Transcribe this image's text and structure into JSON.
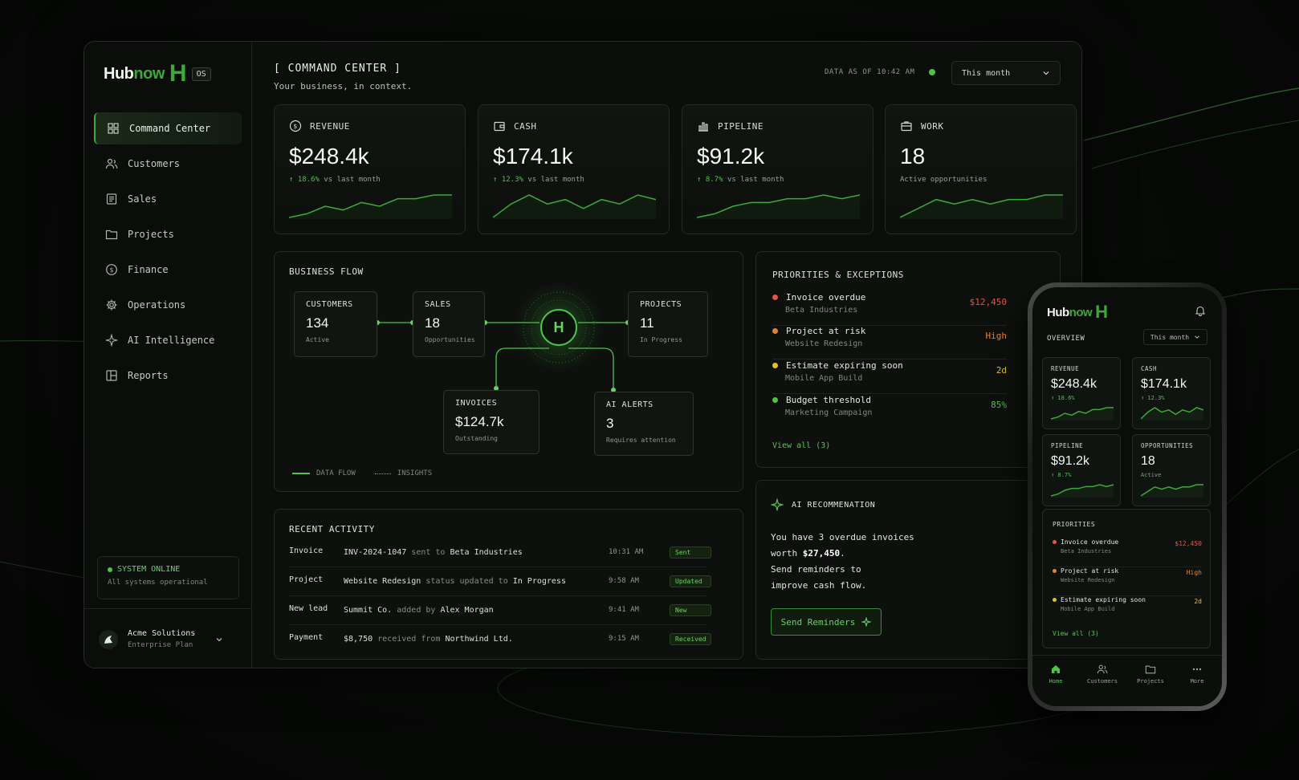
{
  "app": {
    "brand_hub": "Hub",
    "brand_now": "now",
    "brand_mark": "H",
    "os_badge": "OS",
    "accent": "#3fa83a"
  },
  "sidebar": {
    "items": [
      {
        "label": "Command Center",
        "icon": "grid-icon",
        "active": true
      },
      {
        "label": "Customers",
        "icon": "users-icon"
      },
      {
        "label": "Sales",
        "icon": "document-icon"
      },
      {
        "label": "Projects",
        "icon": "folder-icon"
      },
      {
        "label": "Finance",
        "icon": "dollar-circle-icon"
      },
      {
        "label": "Operations",
        "icon": "gear-icon"
      },
      {
        "label": "AI Intelligence",
        "icon": "sparkle-icon"
      },
      {
        "label": "Reports",
        "icon": "report-icon"
      }
    ],
    "system_status": "SYSTEM ONLINE",
    "system_sub": "All systems operational",
    "account_name": "Acme Solutions",
    "account_plan": "Enterprise Plan"
  },
  "header": {
    "title": "[ COMMAND CENTER ]",
    "subtitle": "Your business, in context.",
    "data_as_of": "DATA AS OF 10:42 AM",
    "period": "This month"
  },
  "kpis": [
    {
      "label": "REVENUE",
      "icon": "dollar-circle-icon",
      "value": "$248.4k",
      "delta": "↑ 18.6%",
      "delta_suffix": "vs last month",
      "spark": [
        3,
        4,
        6,
        5,
        7,
        6,
        8,
        8,
        9,
        9
      ]
    },
    {
      "label": "CASH",
      "icon": "wallet-icon",
      "value": "$174.1k",
      "delta": "↑ 12.3%",
      "delta_suffix": "vs last month",
      "spark": [
        3,
        6,
        8,
        6,
        7,
        5,
        7,
        6,
        8,
        7
      ]
    },
    {
      "label": "PIPELINE",
      "icon": "bar-chart-icon",
      "value": "$91.2k",
      "delta": "↑ 8.7%",
      "delta_suffix": "vs last month",
      "spark": [
        3,
        4,
        6,
        7,
        7,
        8,
        8,
        9,
        8,
        9
      ]
    },
    {
      "label": "WORK",
      "icon": "briefcase-icon",
      "value": "18",
      "delta": "",
      "delta_suffix": "Active opportunities",
      "spark": [
        3,
        5,
        7,
        6,
        7,
        6,
        7,
        7,
        8,
        8
      ]
    }
  ],
  "business_flow": {
    "title": "BUSINESS FLOW",
    "hub_label": "H",
    "nodes": {
      "customers": {
        "label": "CUSTOMERS",
        "value": "134",
        "sub": "Active"
      },
      "sales": {
        "label": "SALES",
        "value": "18",
        "sub": "Opportunities"
      },
      "projects": {
        "label": "PROJECTS",
        "value": "11",
        "sub": "In Progress"
      },
      "invoices": {
        "label": "INVOICES",
        "value": "$124.7k",
        "sub": "Outstanding"
      },
      "alerts": {
        "label": "AI ALERTS",
        "value": "3",
        "sub": "Requires attention"
      }
    },
    "legend_flow": "DATA FLOW",
    "legend_insights": "INSIGHTS"
  },
  "priorities": {
    "title": "PRIORITIES & EXCEPTIONS",
    "items": [
      {
        "title": "Invoice overdue",
        "sub": "Beta Industries",
        "value": "$12,450",
        "color": "#e5534b"
      },
      {
        "title": "Project at risk",
        "sub": "Website Redesign",
        "value": "High",
        "color": "#e8812f"
      },
      {
        "title": "Estimate expiring soon",
        "sub": "Mobile App Build",
        "value": "2d",
        "color": "#e3c12e"
      },
      {
        "title": "Budget threshold",
        "sub": "Marketing Campaign",
        "value": "85%",
        "color": "#4fc24a"
      }
    ],
    "view_all": "View all (3)"
  },
  "activity": {
    "title": "RECENT ACTIVITY",
    "rows": [
      {
        "type": "Invoice",
        "subject": "INV-2024-1047",
        "middle": "sent to",
        "object": "Beta Industries",
        "time": "10:31 AM",
        "badge": "Sent"
      },
      {
        "type": "Project",
        "subject": "Website Redesign",
        "middle": "status updated to",
        "object": "In Progress",
        "time": "9:58 AM",
        "badge": "Updated"
      },
      {
        "type": "New lead",
        "subject": "Summit Co.",
        "middle": "added by",
        "object": "Alex Morgan",
        "time": "9:41 AM",
        "badge": "New"
      },
      {
        "type": "Payment",
        "subject": "$8,750",
        "middle": "received from",
        "object": "Northwind Ltd.",
        "time": "9:15 AM",
        "badge": "Received"
      }
    ]
  },
  "ai_rec": {
    "title": "AI RECOMMENATION",
    "line1": "You have 3 overdue invoices",
    "line2_prefix": "worth ",
    "line2_amount": "$27,450",
    "line2_suffix": ".",
    "line3": "Send reminders to",
    "line4": "improve cash flow.",
    "button": "Send Reminders"
  },
  "phone": {
    "overview": "OVERVIEW",
    "period": "This month",
    "cards": [
      {
        "label": "REVENUE",
        "value": "$248.4k",
        "delta": "↑ 18.6%"
      },
      {
        "label": "CASH",
        "value": "$174.1k",
        "delta": "↑ 12.3%"
      },
      {
        "label": "PIPELINE",
        "value": "$91.2k",
        "delta": "↑ 8.7%"
      },
      {
        "label": "OPPORTUNITIES",
        "value": "18",
        "sub": "Active"
      }
    ],
    "priorities_title": "PRIORITIES",
    "priorities": [
      {
        "title": "Invoice overdue",
        "sub": "Beta Industries",
        "value": "$12,450",
        "color": "#e5534b"
      },
      {
        "title": "Project at risk",
        "sub": "Website Redesign",
        "value": "High",
        "color": "#e8812f"
      },
      {
        "title": "Estimate expiring soon",
        "sub": "Mobile App Build",
        "value": "2d",
        "color": "#e3c12e"
      }
    ],
    "view_all": "View all (3)",
    "tabs": [
      {
        "label": "Home",
        "icon": "home-icon",
        "active": true
      },
      {
        "label": "Customers",
        "icon": "users-icon"
      },
      {
        "label": "Projects",
        "icon": "folder-icon"
      },
      {
        "label": "More",
        "icon": "more-icon"
      }
    ]
  }
}
